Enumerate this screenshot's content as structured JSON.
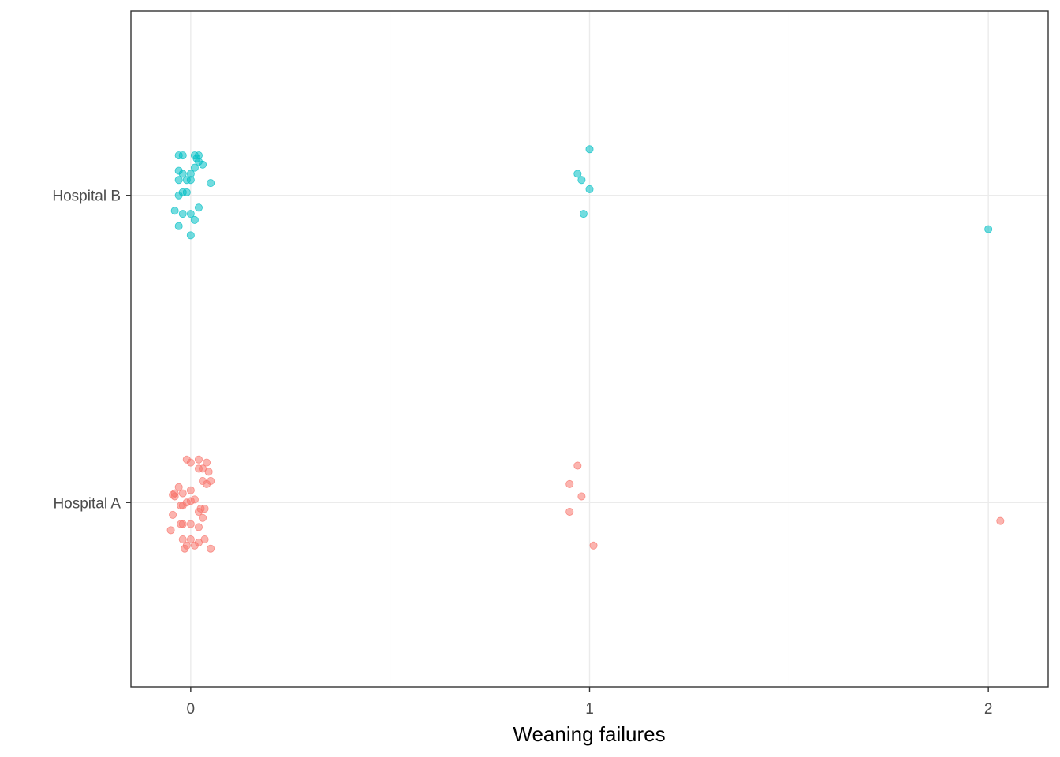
{
  "chart_data": {
    "type": "scatter",
    "jitter": true,
    "xlabel": "Weaning failures",
    "ylabel": "",
    "xlim": [
      -0.15,
      2.15
    ],
    "x_ticks": [
      "0",
      "1",
      "2"
    ],
    "x_tick_values": [
      0,
      1,
      2
    ],
    "grid": true,
    "legend": "none",
    "categories": [
      "Hospital A",
      "Hospital B"
    ],
    "series": [
      {
        "category": "Hospital A",
        "color": "#F8766D",
        "points": [
          {
            "x": -0.01,
            "y": 0.14
          },
          {
            "x": 0.0,
            "y": 0.13
          },
          {
            "x": 0.02,
            "y": 0.14
          },
          {
            "x": 0.04,
            "y": 0.13
          },
          {
            "x": 0.02,
            "y": 0.11
          },
          {
            "x": 0.03,
            "y": 0.11
          },
          {
            "x": 0.045,
            "y": 0.1
          },
          {
            "x": 0.03,
            "y": 0.07
          },
          {
            "x": 0.05,
            "y": 0.07
          },
          {
            "x": 0.04,
            "y": 0.06
          },
          {
            "x": -0.03,
            "y": 0.05
          },
          {
            "x": 0.0,
            "y": 0.04
          },
          {
            "x": -0.02,
            "y": 0.03
          },
          {
            "x": -0.04,
            "y": 0.03
          },
          {
            "x": -0.045,
            "y": 0.025
          },
          {
            "x": -0.04,
            "y": 0.02
          },
          {
            "x": 0.01,
            "y": 0.01
          },
          {
            "x": 0.0,
            "y": 0.005
          },
          {
            "x": -0.01,
            "y": 0.0
          },
          {
            "x": -0.025,
            "y": -0.01
          },
          {
            "x": -0.02,
            "y": -0.01
          },
          {
            "x": 0.025,
            "y": -0.02
          },
          {
            "x": 0.035,
            "y": -0.02
          },
          {
            "x": 0.02,
            "y": -0.03
          },
          {
            "x": -0.045,
            "y": -0.04
          },
          {
            "x": 0.03,
            "y": -0.05
          },
          {
            "x": -0.02,
            "y": -0.07
          },
          {
            "x": -0.025,
            "y": -0.07
          },
          {
            "x": 0.0,
            "y": -0.07
          },
          {
            "x": 0.02,
            "y": -0.08
          },
          {
            "x": -0.05,
            "y": -0.09
          },
          {
            "x": -0.02,
            "y": -0.12
          },
          {
            "x": 0.0,
            "y": -0.12
          },
          {
            "x": 0.02,
            "y": -0.13
          },
          {
            "x": 0.035,
            "y": -0.12
          },
          {
            "x": -0.01,
            "y": -0.14
          },
          {
            "x": -0.015,
            "y": -0.15
          },
          {
            "x": 0.01,
            "y": -0.14
          },
          {
            "x": 0.05,
            "y": -0.15
          },
          {
            "x": 0.97,
            "y": 0.12
          },
          {
            "x": 0.95,
            "y": 0.06
          },
          {
            "x": 0.98,
            "y": 0.02
          },
          {
            "x": 0.95,
            "y": -0.03
          },
          {
            "x": 1.01,
            "y": -0.14
          },
          {
            "x": 2.03,
            "y": -0.06
          }
        ]
      },
      {
        "category": "Hospital B",
        "color": "#00BFC4",
        "points": [
          {
            "x": -0.03,
            "y": 0.13
          },
          {
            "x": -0.02,
            "y": 0.13
          },
          {
            "x": 0.01,
            "y": 0.13
          },
          {
            "x": 0.02,
            "y": 0.13
          },
          {
            "x": 0.015,
            "y": 0.12
          },
          {
            "x": 0.02,
            "y": 0.11
          },
          {
            "x": 0.03,
            "y": 0.1
          },
          {
            "x": 0.01,
            "y": 0.09
          },
          {
            "x": -0.03,
            "y": 0.08
          },
          {
            "x": -0.02,
            "y": 0.07
          },
          {
            "x": 0.0,
            "y": 0.07
          },
          {
            "x": -0.03,
            "y": 0.05
          },
          {
            "x": -0.01,
            "y": 0.05
          },
          {
            "x": 0.0,
            "y": 0.05
          },
          {
            "x": 0.05,
            "y": 0.04
          },
          {
            "x": -0.02,
            "y": 0.01
          },
          {
            "x": -0.03,
            "y": 0.0
          },
          {
            "x": -0.01,
            "y": 0.01
          },
          {
            "x": -0.04,
            "y": -0.05
          },
          {
            "x": 0.02,
            "y": -0.04
          },
          {
            "x": 0.0,
            "y": -0.06
          },
          {
            "x": -0.02,
            "y": -0.06
          },
          {
            "x": 0.01,
            "y": -0.08
          },
          {
            "x": -0.03,
            "y": -0.1
          },
          {
            "x": 0.0,
            "y": -0.13
          },
          {
            "x": 1.0,
            "y": 0.15
          },
          {
            "x": 0.97,
            "y": 0.07
          },
          {
            "x": 0.98,
            "y": 0.05
          },
          {
            "x": 1.0,
            "y": 0.02
          },
          {
            "x": 0.985,
            "y": -0.06
          },
          {
            "x": 2.0,
            "y": -0.11
          }
        ]
      }
    ]
  }
}
